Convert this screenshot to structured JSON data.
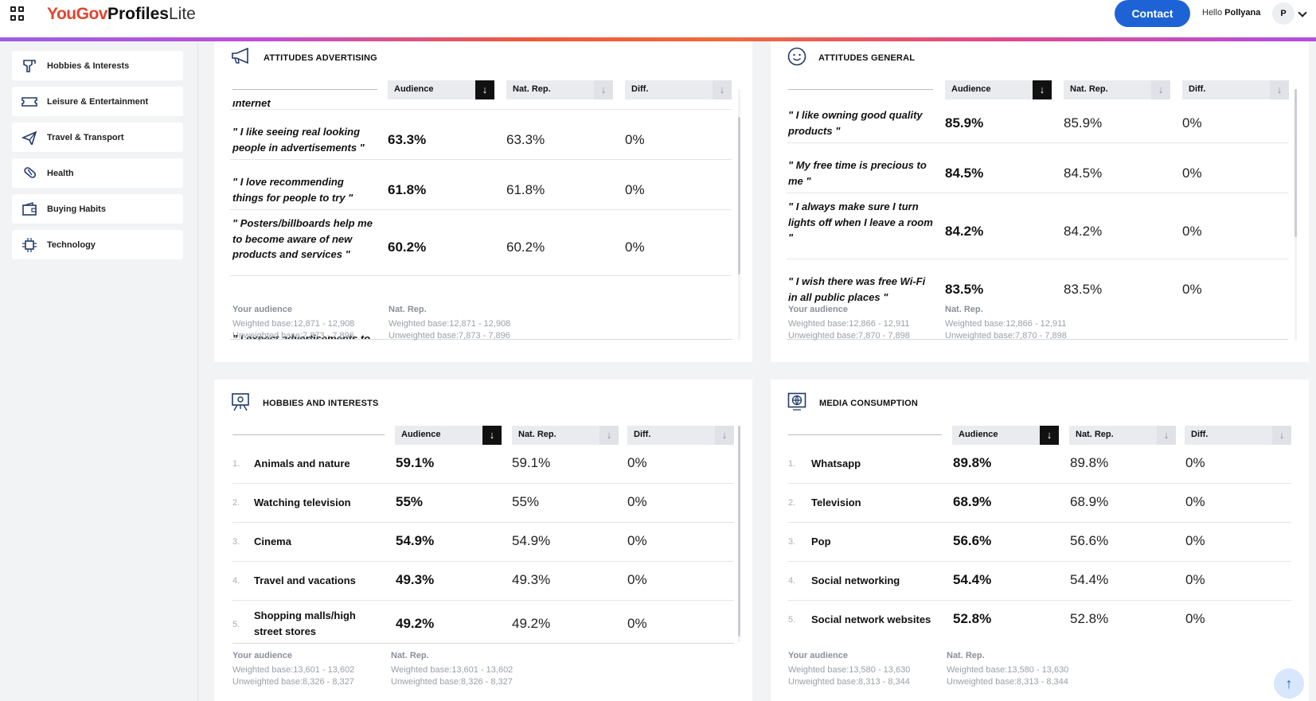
{
  "header": {
    "logo_part1": "YouGov",
    "logo_part2": "Profiles",
    "logo_part3": "Lite",
    "contact_label": "Contact",
    "hello_prefix": "Hello",
    "user_name": "Pollyana",
    "avatar_initial": "P"
  },
  "sidebar": {
    "items": [
      {
        "label": "Hobbies & Interests",
        "icon": "hobbies-icon"
      },
      {
        "label": "Leisure & Entertainment",
        "icon": "ticket-icon"
      },
      {
        "label": "Travel & Transport",
        "icon": "plane-icon"
      },
      {
        "label": "Health",
        "icon": "pill-icon"
      },
      {
        "label": "Buying Habits",
        "icon": "wallet-icon"
      },
      {
        "label": "Technology",
        "icon": "chip-icon"
      }
    ]
  },
  "columns": {
    "audience": "Audience",
    "natrep": "Nat. Rep.",
    "diff": "Diff."
  },
  "footer_labels": {
    "your_audience": "Your audience",
    "nat_rep": "Nat. Rep."
  },
  "cards": {
    "advertising": {
      "title": "ATTITUDES ADVERTISING",
      "partial_top": "internet",
      "rows": [
        {
          "label": "\" I like seeing real looking people in advertisements \"",
          "audience": "63.3%",
          "natrep": "63.3%",
          "diff": "0%"
        },
        {
          "label": "\" I love recommending things for people to try \"",
          "audience": "61.8%",
          "natrep": "61.8%",
          "diff": "0%"
        },
        {
          "label": "\" Posters/billboards help me to become aware of new products and services \"",
          "audience": "60.2%",
          "natrep": "60.2%",
          "diff": "0%"
        }
      ],
      "partial_bottom": "\" I expect advertisements to",
      "footer": {
        "aud_weighted": "Weighted base:12,871 - 12,908",
        "aud_unweighted": "Unweighted base:7,873 - 7,896",
        "nat_weighted": "Weighted base:12,871 - 12,908",
        "nat_unweighted": "Unweighted base:7,873 - 7,896"
      }
    },
    "general": {
      "title": "ATTITUDES GENERAL",
      "rows": [
        {
          "label": "\" I like owning good quality products \"",
          "audience": "85.9%",
          "natrep": "85.9%",
          "diff": "0%"
        },
        {
          "label": "\" My free time is precious to me \"",
          "audience": "84.5%",
          "natrep": "84.5%",
          "diff": "0%"
        },
        {
          "label": "\" I always make sure I turn lights off when I leave a room \"",
          "audience": "84.2%",
          "natrep": "84.2%",
          "diff": "0%"
        },
        {
          "label": "\" I wish there was free Wi-Fi in all public places \"",
          "audience": "83.5%",
          "natrep": "83.5%",
          "diff": "0%"
        }
      ],
      "footer": {
        "aud_weighted": "Weighted base:12,866 - 12,911",
        "aud_unweighted": "Unweighted base:7,870 - 7,898",
        "nat_weighted": "Weighted base:12,866 - 12,911",
        "nat_unweighted": "Unweighted base:7,870 - 7,898"
      }
    },
    "hobbies": {
      "title": "HOBBIES AND INTERESTS",
      "rows": [
        {
          "rank": "1.",
          "label": "Animals and nature",
          "audience": "59.1%",
          "natrep": "59.1%",
          "diff": "0%"
        },
        {
          "rank": "2.",
          "label": "Watching television",
          "audience": "55%",
          "natrep": "55%",
          "diff": "0%"
        },
        {
          "rank": "3.",
          "label": "Cinema",
          "audience": "54.9%",
          "natrep": "54.9%",
          "diff": "0%"
        },
        {
          "rank": "4.",
          "label": "Travel and vacations",
          "audience": "49.3%",
          "natrep": "49.3%",
          "diff": "0%"
        },
        {
          "rank": "5.",
          "label": "Shopping malls/high street stores",
          "audience": "49.2%",
          "natrep": "49.2%",
          "diff": "0%"
        }
      ],
      "footer": {
        "aud_weighted": "Weighted base:13,601 - 13,602",
        "aud_unweighted": "Unweighted base:8,326 - 8,327",
        "nat_weighted": "Weighted base:13,601 - 13,602",
        "nat_unweighted": "Unweighted base:8,326 - 8,327"
      }
    },
    "media": {
      "title": "MEDIA CONSUMPTION",
      "rows": [
        {
          "rank": "1.",
          "label": "Whatsapp",
          "audience": "89.8%",
          "natrep": "89.8%",
          "diff": "0%"
        },
        {
          "rank": "2.",
          "label": "Television",
          "audience": "68.9%",
          "natrep": "68.9%",
          "diff": "0%"
        },
        {
          "rank": "3.",
          "label": "Pop",
          "audience": "56.6%",
          "natrep": "56.6%",
          "diff": "0%"
        },
        {
          "rank": "4.",
          "label": "Social networking",
          "audience": "54.4%",
          "natrep": "54.4%",
          "diff": "0%"
        },
        {
          "rank": "5.",
          "label": "Social network websites",
          "audience": "52.8%",
          "natrep": "52.8%",
          "diff": "0%"
        }
      ],
      "footer": {
        "aud_weighted": "Weighted base:13,580 - 13,630",
        "aud_unweighted": "Unweighted base:8,313 - 8,344",
        "nat_weighted": "Weighted base:13,580 - 13,630",
        "nat_unweighted": "Unweighted base:8,313 - 8,344"
      }
    }
  }
}
